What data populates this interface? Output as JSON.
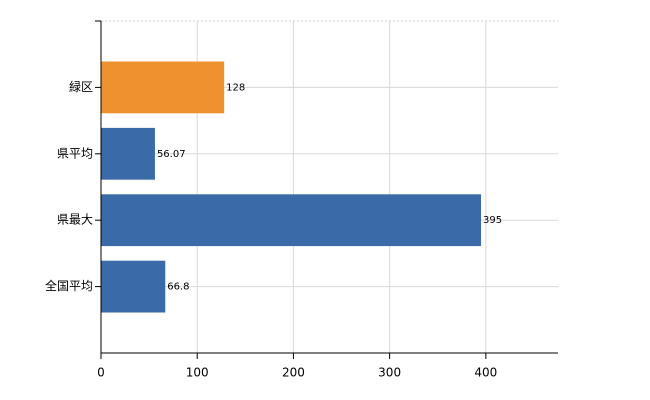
{
  "chart_data": {
    "type": "hbar",
    "categories": [
      "緑区",
      "県平均",
      "県最大",
      "全国平均"
    ],
    "values": [
      128,
      56.07,
      395,
      66.8
    ],
    "colors": [
      "#f0912f",
      "#3a6aa8",
      "#3a6aa8",
      "#3a6aa8"
    ],
    "xlim": [
      0,
      475
    ],
    "xticks": [
      0,
      100,
      200,
      300,
      400
    ],
    "grid": true
  }
}
